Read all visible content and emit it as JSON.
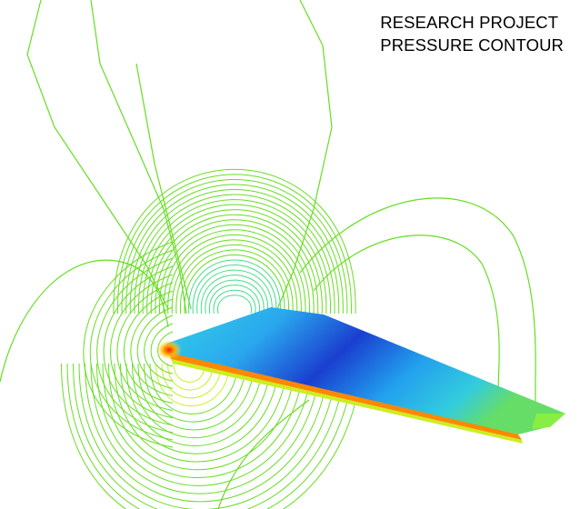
{
  "caption": {
    "line1": "RESEARCH PROJECT",
    "line2": "PRESSURE CONTOUR"
  },
  "colors": {
    "background": "#ffffff",
    "contour_far": "#66dd22",
    "contour_near": "#44dd88",
    "surface_low": "#1a3fd0",
    "surface_mid": "#33ccdd",
    "surface_high": "#99ee22",
    "stagnation": "#ff2200",
    "text": "#000000"
  },
  "colormap": [
    "#ff1a00",
    "#ffaa00",
    "#ddee22",
    "#66dd22",
    "#22dd99",
    "#22d8e8",
    "#3fa0ff",
    "#1a3fd0"
  ]
}
